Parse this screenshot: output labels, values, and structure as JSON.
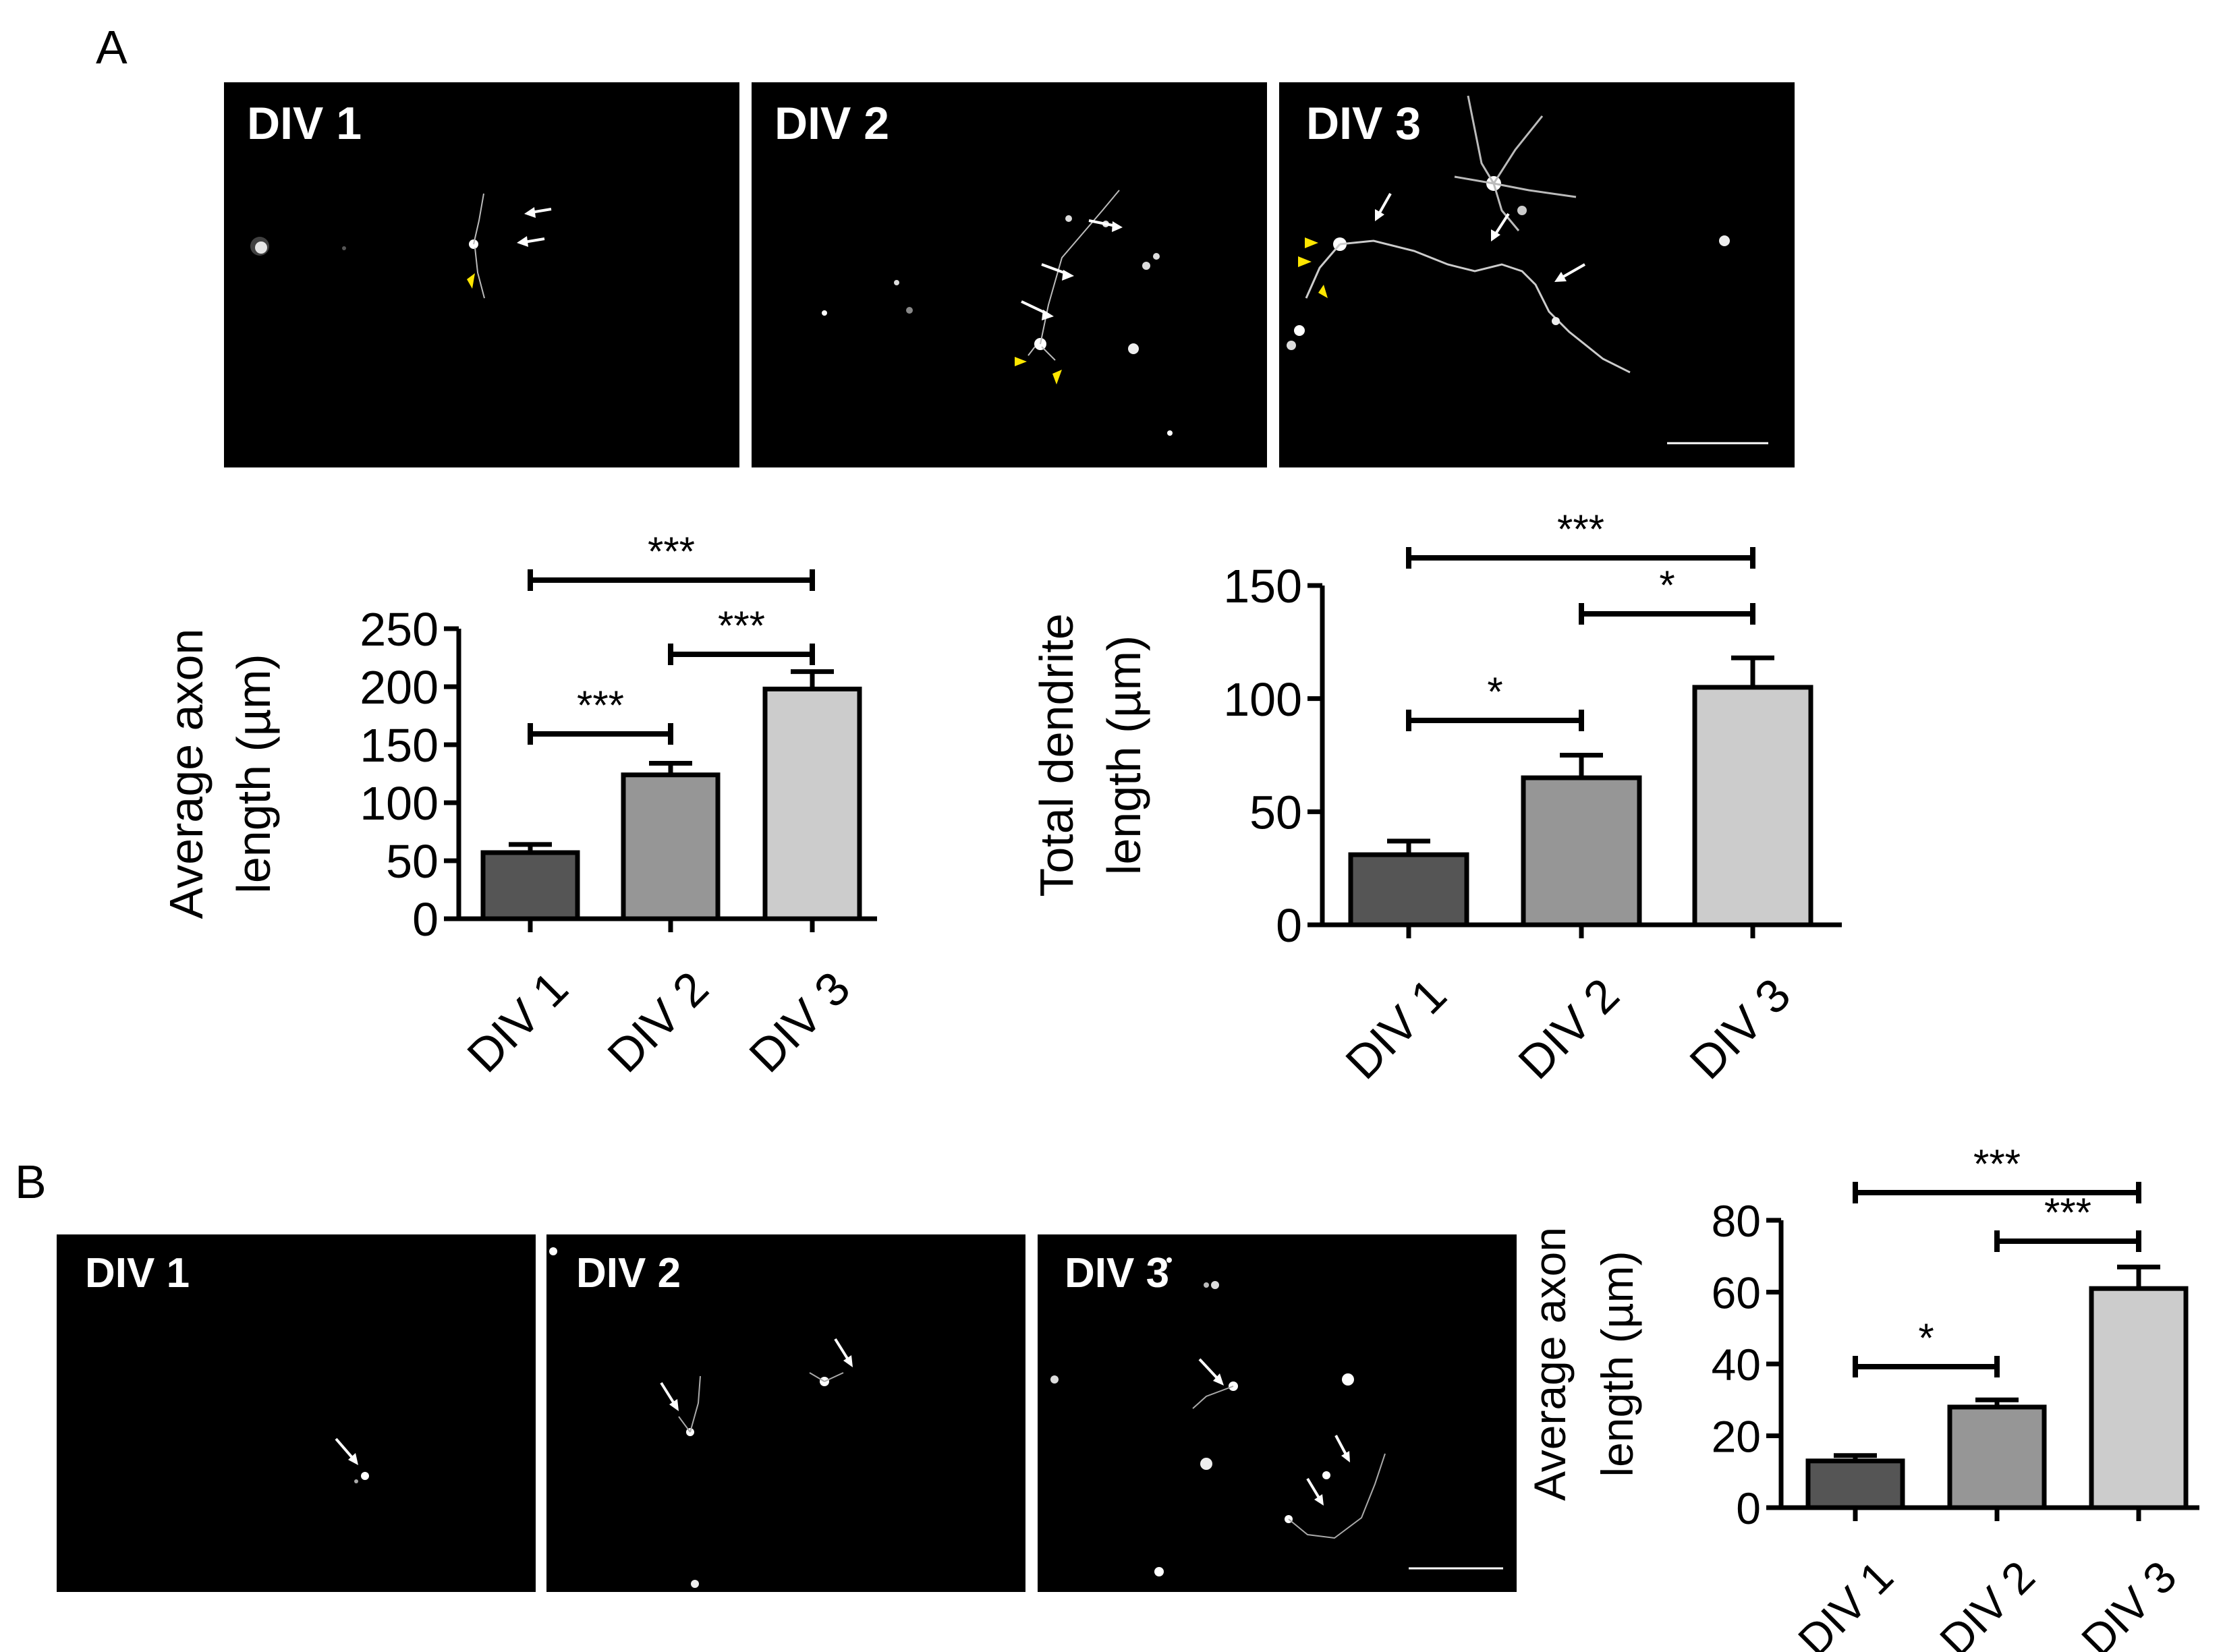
{
  "panels": {
    "A": {
      "letter": "A",
      "images": [
        "DIV 1",
        "DIV 2",
        "DIV 3"
      ]
    },
    "B": {
      "letter": "B",
      "images": [
        "DIV 1",
        "DIV 2",
        "DIV 3"
      ]
    }
  },
  "colors": {
    "div1": "#555555",
    "div2": "#969696",
    "div3": "#cccccc",
    "arrowhead": "#ffe600"
  },
  "chart_data": [
    {
      "id": "A-axon",
      "type": "bar",
      "categories": [
        "DIV 1",
        "DIV 2",
        "DIV 3"
      ],
      "values": [
        57,
        124,
        198
      ],
      "errors": [
        7,
        10,
        15
      ],
      "ylabel": [
        "Average axon",
        "length (µm)"
      ],
      "ylim": [
        0,
        250
      ],
      "yticks": [
        0,
        50,
        100,
        150,
        200,
        250
      ],
      "significance": [
        {
          "from": 0,
          "to": 1,
          "label": "***"
        },
        {
          "from": 1,
          "to": 2,
          "label": "***"
        },
        {
          "from": 0,
          "to": 2,
          "label": "***"
        }
      ]
    },
    {
      "id": "A-dendrite",
      "type": "bar",
      "categories": [
        "DIV 1",
        "DIV 2",
        "DIV 3"
      ],
      "values": [
        31,
        65,
        105
      ],
      "errors": [
        6,
        10,
        13
      ],
      "ylabel": [
        "Total dendrite",
        "length (µm)"
      ],
      "ylim": [
        0,
        150
      ],
      "yticks": [
        0,
        50,
        100,
        150
      ],
      "significance": [
        {
          "from": 0,
          "to": 1,
          "label": "*"
        },
        {
          "from": 1,
          "to": 2,
          "label": "*"
        },
        {
          "from": 0,
          "to": 2,
          "label": "***"
        }
      ]
    },
    {
      "id": "B-axon",
      "type": "bar",
      "categories": [
        "DIV 1",
        "DIV 2",
        "DIV 3"
      ],
      "values": [
        13,
        28,
        61
      ],
      "errors": [
        1.5,
        2,
        6
      ],
      "ylabel": [
        "Average axon",
        "length (µm)"
      ],
      "ylim": [
        0,
        80
      ],
      "yticks": [
        0,
        20,
        40,
        60,
        80
      ],
      "significance": [
        {
          "from": 0,
          "to": 1,
          "label": "*"
        },
        {
          "from": 1,
          "to": 2,
          "label": "***"
        },
        {
          "from": 0,
          "to": 2,
          "label": "***"
        }
      ]
    }
  ]
}
